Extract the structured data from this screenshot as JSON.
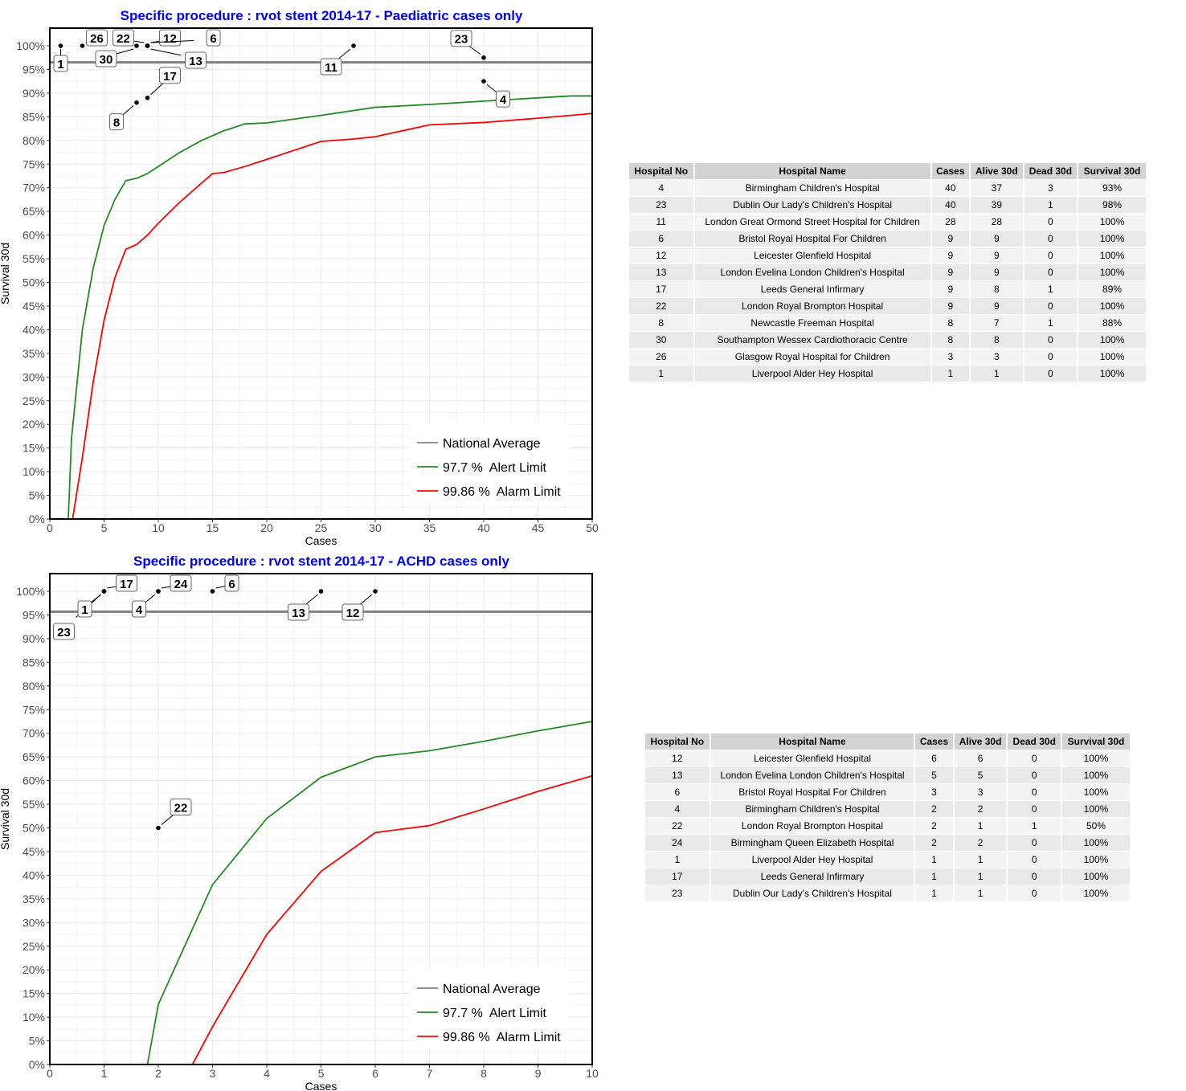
{
  "chart_data": [
    {
      "type": "line",
      "title": "Specific procedure : rvot stent 2014-17 - Paediatric cases only",
      "xlabel": "Cases",
      "ylabel": "Survival 30d",
      "xlim": [
        0,
        50
      ],
      "ylim": [
        0,
        100
      ],
      "xticks": [
        0,
        5,
        10,
        15,
        20,
        25,
        30,
        35,
        40,
        45,
        50
      ],
      "yticks": [
        0,
        5,
        10,
        15,
        20,
        25,
        30,
        35,
        40,
        45,
        50,
        55,
        60,
        65,
        70,
        75,
        80,
        85,
        90,
        95,
        100
      ],
      "national_average": 96.5,
      "legend": [
        "National Average",
        "97.7 %  Alert Limit",
        "99.86 %  Alarm Limit"
      ],
      "legend_position": "bottom-right",
      "alert": [
        [
          1.7,
          0
        ],
        [
          2,
          17
        ],
        [
          3,
          40
        ],
        [
          4,
          53
        ],
        [
          5,
          62
        ],
        [
          6,
          67.5
        ],
        [
          7,
          71.5
        ],
        [
          8,
          72
        ],
        [
          9,
          73
        ],
        [
          10,
          74.5
        ],
        [
          12,
          77.5
        ],
        [
          14,
          80
        ],
        [
          16,
          82
        ],
        [
          18,
          83.5
        ],
        [
          20,
          83.7
        ],
        [
          25,
          85.3
        ],
        [
          30,
          87
        ],
        [
          35,
          87.6
        ],
        [
          40,
          88.3
        ],
        [
          45,
          89
        ],
        [
          48,
          89.4
        ],
        [
          50,
          89.4
        ]
      ],
      "alarm": [
        [
          2.1,
          0
        ],
        [
          3,
          13
        ],
        [
          4,
          29
        ],
        [
          5,
          42
        ],
        [
          6,
          51
        ],
        [
          7,
          57
        ],
        [
          8,
          58
        ],
        [
          9,
          60
        ],
        [
          10,
          62.5
        ],
        [
          12,
          67
        ],
        [
          14,
          71
        ],
        [
          15,
          73
        ],
        [
          16,
          73.2
        ],
        [
          18,
          74.5
        ],
        [
          20,
          76
        ],
        [
          25,
          79.8
        ],
        [
          28,
          80.3
        ],
        [
          30,
          80.8
        ],
        [
          35,
          83.3
        ],
        [
          40,
          83.8
        ],
        [
          45,
          84.7
        ],
        [
          50,
          85.7
        ]
      ],
      "points": [
        {
          "label": "1",
          "x": 1,
          "y": 100
        },
        {
          "label": "26",
          "x": 3,
          "y": 100
        },
        {
          "label": "30",
          "x": 8,
          "y": 100
        },
        {
          "label": "22",
          "x": 9,
          "y": 100
        },
        {
          "label": "12",
          "x": 9,
          "y": 100
        },
        {
          "label": "6",
          "x": 9,
          "y": 100
        },
        {
          "label": "13",
          "x": 9,
          "y": 100
        },
        {
          "label": "17",
          "x": 9,
          "y": 89
        },
        {
          "label": "8",
          "x": 8,
          "y": 88
        },
        {
          "label": "11",
          "x": 28,
          "y": 100
        },
        {
          "label": "23",
          "x": 40,
          "y": 97.5
        },
        {
          "label": "4",
          "x": 40,
          "y": 92.5
        }
      ]
    },
    {
      "type": "line",
      "title": "Specific procedure : rvot stent 2014-17 - ACHD cases only",
      "xlabel": "Cases",
      "ylabel": "Survival 30d",
      "xlim": [
        0,
        10
      ],
      "ylim": [
        0,
        100
      ],
      "xticks": [
        0,
        1,
        2,
        3,
        4,
        5,
        6,
        7,
        8,
        9,
        10
      ],
      "yticks": [
        0,
        5,
        10,
        15,
        20,
        25,
        30,
        35,
        40,
        45,
        50,
        55,
        60,
        65,
        70,
        75,
        80,
        85,
        90,
        95,
        100
      ],
      "national_average": 95.7,
      "legend": [
        "National Average",
        "97.7 %  Alert Limit",
        "99.86 %  Alarm Limit"
      ],
      "legend_position": "bottom-right",
      "alert": [
        [
          1.8,
          0
        ],
        [
          2,
          12.7
        ],
        [
          3,
          38
        ],
        [
          4,
          52
        ],
        [
          5,
          60.7
        ],
        [
          6,
          65
        ],
        [
          7,
          66.3
        ],
        [
          8,
          68.3
        ],
        [
          9,
          70.5
        ],
        [
          10,
          72.5
        ]
      ],
      "alarm": [
        [
          2.63,
          0
        ],
        [
          3,
          8
        ],
        [
          4,
          27.5
        ],
        [
          5,
          40.8
        ],
        [
          6,
          49
        ],
        [
          7,
          50.5
        ],
        [
          8,
          54
        ],
        [
          9,
          57.7
        ],
        [
          10,
          61
        ]
      ],
      "points": [
        {
          "label": "23",
          "x": 1,
          "y": 100
        },
        {
          "label": "1",
          "x": 1,
          "y": 100
        },
        {
          "label": "17",
          "x": 1,
          "y": 100
        },
        {
          "label": "4",
          "x": 2,
          "y": 100
        },
        {
          "label": "24",
          "x": 2,
          "y": 100
        },
        {
          "label": "6",
          "x": 3,
          "y": 100
        },
        {
          "label": "13",
          "x": 5,
          "y": 100
        },
        {
          "label": "12",
          "x": 6,
          "y": 100
        },
        {
          "label": "22",
          "x": 2,
          "y": 50
        }
      ]
    }
  ],
  "colors": {
    "title": "#0000ff",
    "alert": "#228b22",
    "alarm": "#ff0000",
    "average": "#808080"
  },
  "tables": [
    {
      "headers": [
        "Hospital No",
        "Hospital Name",
        "Cases",
        "Alive 30d",
        "Dead 30d",
        "Survival 30d"
      ],
      "rows": [
        [
          "4",
          "Birmingham Children's Hospital",
          "40",
          "37",
          "3",
          "93%"
        ],
        [
          "23",
          "Dublin Our Lady's Children's Hospital",
          "40",
          "39",
          "1",
          "98%"
        ],
        [
          "11",
          "London Great Ormond Street Hospital for Children",
          "28",
          "28",
          "0",
          "100%"
        ],
        [
          "6",
          "Bristol Royal Hospital For Children",
          "9",
          "9",
          "0",
          "100%"
        ],
        [
          "12",
          "Leicester Glenfield Hospital",
          "9",
          "9",
          "0",
          "100%"
        ],
        [
          "13",
          "London Evelina London Children's Hospital",
          "9",
          "9",
          "0",
          "100%"
        ],
        [
          "17",
          "Leeds General Infirmary",
          "9",
          "8",
          "1",
          "89%"
        ],
        [
          "22",
          "London Royal Brompton Hospital",
          "9",
          "9",
          "0",
          "100%"
        ],
        [
          "8",
          "Newcastle Freeman Hospital",
          "8",
          "7",
          "1",
          "88%"
        ],
        [
          "30",
          "Southampton Wessex Cardiothoracic Centre",
          "8",
          "8",
          "0",
          "100%"
        ],
        [
          "26",
          "Glasgow Royal Hospital for Children",
          "3",
          "3",
          "0",
          "100%"
        ],
        [
          "1",
          "Liverpool Alder Hey Hospital",
          "1",
          "1",
          "0",
          "100%"
        ]
      ]
    },
    {
      "headers": [
        "Hospital No",
        "Hospital Name",
        "Cases",
        "Alive 30d",
        "Dead 30d",
        "Survival 30d"
      ],
      "rows": [
        [
          "12",
          "Leicester Glenfield Hospital",
          "6",
          "6",
          "0",
          "100%"
        ],
        [
          "13",
          "London Evelina London Children's Hospital",
          "5",
          "5",
          "0",
          "100%"
        ],
        [
          "6",
          "Bristol Royal Hospital For Children",
          "3",
          "3",
          "0",
          "100%"
        ],
        [
          "4",
          "Birmingham Children's Hospital",
          "2",
          "2",
          "0",
          "100%"
        ],
        [
          "22",
          "London Royal Brompton Hospital",
          "2",
          "1",
          "1",
          "50%"
        ],
        [
          "24",
          "Birmingham Queen Elizabeth Hospital",
          "2",
          "2",
          "0",
          "100%"
        ],
        [
          "1",
          "Liverpool Alder Hey Hospital",
          "1",
          "1",
          "0",
          "100%"
        ],
        [
          "17",
          "Leeds General Infirmary",
          "1",
          "1",
          "0",
          "100%"
        ],
        [
          "23",
          "Dublin Our Lady's Children's Hospital",
          "1",
          "1",
          "0",
          "100%"
        ]
      ]
    }
  ]
}
